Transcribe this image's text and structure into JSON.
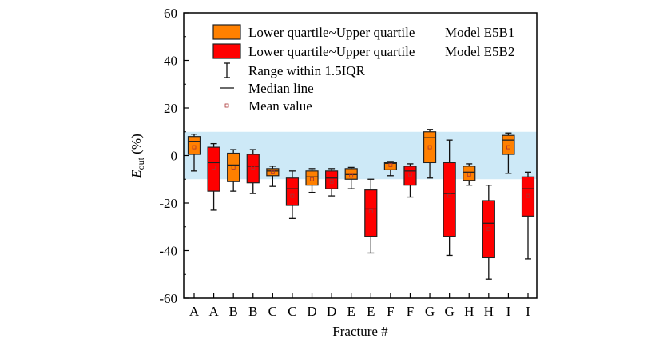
{
  "chart_data": {
    "type": "box",
    "xlabel": "Fracture #",
    "ylabel_main": "E",
    "ylabel_sub": "out",
    "ylabel_unit": " (%)",
    "ylim": [
      -60,
      60
    ],
    "yticks": [
      -60,
      -40,
      -20,
      0,
      20,
      40,
      60
    ],
    "band": [
      -10,
      10
    ],
    "band_color": "#cde9f7",
    "series_colors": {
      "E5B1": "#ff8000",
      "E5B2": "#ff0000"
    },
    "legend": [
      {
        "label": "Lower quartile~Upper quartile",
        "model": "Model E5B1",
        "type": "box1"
      },
      {
        "label": "Lower quartile~Upper quartile",
        "model": "Model E5B2",
        "type": "box2"
      },
      {
        "label": "Range within 1.5IQR",
        "type": "whisker"
      },
      {
        "label": "Median line",
        "type": "median"
      },
      {
        "label": "Mean value",
        "type": "mean"
      }
    ],
    "boxes": [
      {
        "cat": "A",
        "series": "E5B1",
        "whisker_hi": 9,
        "q3": 8,
        "median": 6,
        "q1": 0.5,
        "whisker_lo": -6.5,
        "mean": 3.5
      },
      {
        "cat": "A",
        "series": "E5B2",
        "whisker_hi": 5,
        "q3": 3.5,
        "median": -3,
        "q1": -15,
        "whisker_lo": -23,
        "mean": -5
      },
      {
        "cat": "B",
        "series": "E5B1",
        "whisker_hi": 2.5,
        "q3": 1,
        "median": -4,
        "q1": -11,
        "whisker_lo": -15,
        "mean": -5
      },
      {
        "cat": "B",
        "series": "E5B2",
        "whisker_hi": 2.5,
        "q3": 0.5,
        "median": -4.5,
        "q1": -11.5,
        "whisker_lo": -16,
        "mean": -5
      },
      {
        "cat": "C",
        "series": "E5B1",
        "whisker_hi": -4.5,
        "q3": -5.5,
        "median": -6.5,
        "q1": -8.5,
        "whisker_lo": -13,
        "mean": -7
      },
      {
        "cat": "C",
        "series": "E5B2",
        "whisker_hi": -6.5,
        "q3": -9.5,
        "median": -14,
        "q1": -21,
        "whisker_lo": -26.5,
        "mean": -17
      },
      {
        "cat": "D",
        "series": "E5B1",
        "whisker_hi": -5.5,
        "q3": -6.5,
        "median": -9,
        "q1": -12.5,
        "whisker_lo": -15.5,
        "mean": -10
      },
      {
        "cat": "D",
        "series": "E5B2",
        "whisker_hi": -5.5,
        "q3": -6.5,
        "median": -9.5,
        "q1": -14,
        "whisker_lo": -17,
        "mean": -11
      },
      {
        "cat": "E",
        "series": "E5B1",
        "whisker_hi": -5,
        "q3": -5.5,
        "median": -8,
        "q1": -10,
        "whisker_lo": -14,
        "mean": -8.5
      },
      {
        "cat": "E",
        "series": "E5B2",
        "whisker_hi": -10,
        "q3": -14.5,
        "median": -22.5,
        "q1": -34,
        "whisker_lo": -41,
        "mean": -23.5
      },
      {
        "cat": "F",
        "series": "E5B1",
        "whisker_hi": -2.5,
        "q3": -3,
        "median": -3.3,
        "q1": -6,
        "whisker_lo": -8.5,
        "mean": -4
      },
      {
        "cat": "F",
        "series": "E5B2",
        "whisker_hi": -3.5,
        "q3": -4.5,
        "median": -6.5,
        "q1": -12.5,
        "whisker_lo": -17.5,
        "mean": -8
      },
      {
        "cat": "G",
        "series": "E5B1",
        "whisker_hi": 11,
        "q3": 10,
        "median": 7.5,
        "q1": -3,
        "whisker_lo": -9.5,
        "mean": 3.5
      },
      {
        "cat": "G",
        "series": "E5B2",
        "whisker_hi": 6.5,
        "q3": -3,
        "median": -16,
        "q1": -34,
        "whisker_lo": -42,
        "mean": -17
      },
      {
        "cat": "H",
        "series": "E5B1",
        "whisker_hi": -3.5,
        "q3": -4.5,
        "median": -7,
        "q1": -10.5,
        "whisker_lo": -12.5,
        "mean": -8
      },
      {
        "cat": "H",
        "series": "E5B2",
        "whisker_hi": -12.5,
        "q3": -19,
        "median": -28.5,
        "q1": -43,
        "whisker_lo": -52,
        "mean": -31
      },
      {
        "cat": "I",
        "series": "E5B1",
        "whisker_hi": 9.5,
        "q3": 8.5,
        "median": 6.5,
        "q1": 0.5,
        "whisker_lo": -7.5,
        "mean": 3.5
      },
      {
        "cat": "I",
        "series": "E5B2",
        "whisker_hi": -7,
        "q3": -9,
        "median": -14,
        "q1": -25.5,
        "whisker_lo": -43.5,
        "mean": -17
      }
    ]
  }
}
